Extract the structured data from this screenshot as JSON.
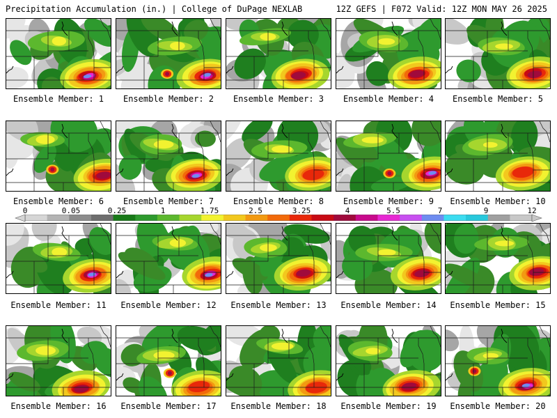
{
  "header": {
    "title": "Precipitation Accumulation (in.) | College of DuPage NEXLAB",
    "run_info": "12Z GEFS | F072 Valid: 12Z MON MAY 26 2025"
  },
  "colorbar": {
    "labels": [
      "0",
      "0.05",
      "0.25",
      "1",
      "1.75",
      "2.5",
      "3.25",
      "4",
      "5.5",
      "7",
      "9",
      "12"
    ],
    "colors": [
      "#d6d6d6",
      "#b4b4b4",
      "#8c8c8c",
      "#6e6e6e",
      "#187a18",
      "#2e9a2e",
      "#5cb82e",
      "#a6d62e",
      "#f2f230",
      "#f2c81e",
      "#f29a12",
      "#f26a0a",
      "#e8280a",
      "#c80a14",
      "#a00a3c",
      "#c80a8c",
      "#e628d2",
      "#c850f0",
      "#6e8cf0",
      "#3cdcf0",
      "#28c8dc",
      "#a0a0a0",
      "#c8c8c8"
    ]
  },
  "members": [
    {
      "label": "Ensemble Member: 1",
      "m": 1
    },
    {
      "label": "Ensemble Member: 2",
      "m": 2
    },
    {
      "label": "Ensemble Member: 3",
      "m": 3
    },
    {
      "label": "Ensemble Member: 4",
      "m": 4
    },
    {
      "label": "Ensemble Member: 5",
      "m": 5
    },
    {
      "label": "Ensemble Member: 6",
      "m": 6
    },
    {
      "label": "Ensemble Member: 7",
      "m": 7
    },
    {
      "label": "Ensemble Member: 8",
      "m": 8
    },
    {
      "label": "Ensemble Member: 9",
      "m": 9
    },
    {
      "label": "Ensemble Member: 10",
      "m": 10
    },
    {
      "label": "Ensemble Member: 11",
      "m": 11
    },
    {
      "label": "Ensemble Member: 12",
      "m": 12
    },
    {
      "label": "Ensemble Member: 13",
      "m": 13
    },
    {
      "label": "Ensemble Member: 14",
      "m": 14
    },
    {
      "label": "Ensemble Member: 15",
      "m": 15
    },
    {
      "label": "Ensemble Member: 16",
      "m": 16
    },
    {
      "label": "Ensemble Member: 17",
      "m": 17
    },
    {
      "label": "Ensemble Member: 18",
      "m": 18
    },
    {
      "label": "Ensemble Member: 19",
      "m": 19
    },
    {
      "label": "Ensemble Member: 20",
      "m": 20
    }
  ]
}
